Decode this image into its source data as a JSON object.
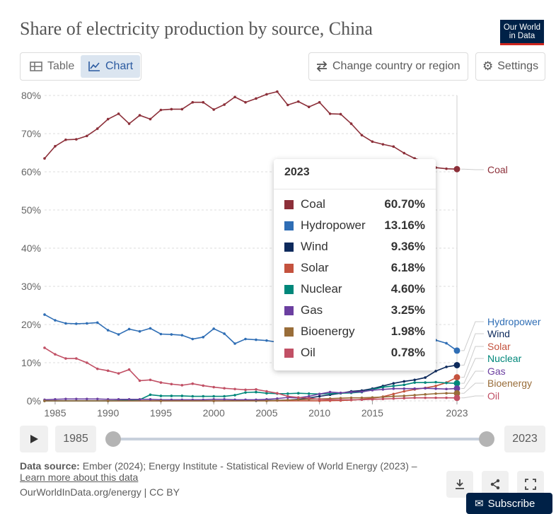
{
  "header": {
    "title": "Share of electricity production by source, China",
    "logo_line1": "Our World",
    "logo_line2": "in Data"
  },
  "toolbar": {
    "table_label": "Table",
    "chart_label": "Chart",
    "change_region_label": "Change country or region",
    "settings_label": "Settings"
  },
  "tooltip": {
    "year": "2023",
    "rows": [
      {
        "name": "Coal",
        "value": "60.70%",
        "color": "#8c2f39"
      },
      {
        "name": "Hydropower",
        "value": "13.16%",
        "color": "#2f6eb5"
      },
      {
        "name": "Wind",
        "value": "9.36%",
        "color": "#0d2a5c"
      },
      {
        "name": "Solar",
        "value": "6.18%",
        "color": "#c4523e"
      },
      {
        "name": "Nuclear",
        "value": "4.60%",
        "color": "#00877a"
      },
      {
        "name": "Gas",
        "value": "3.25%",
        "color": "#6b3fa0"
      },
      {
        "name": "Bioenergy",
        "value": "1.98%",
        "color": "#996d39"
      },
      {
        "name": "Oil",
        "value": "0.78%",
        "color": "#c15065"
      }
    ]
  },
  "timeline": {
    "start_year": "1985",
    "end_year": "2023"
  },
  "footer": {
    "source_label": "Data source:",
    "source_text": "Ember (2024); Energy Institute - Statistical Review of World Energy (2023) –",
    "learn_more": "Learn more about this data",
    "credit": "OurWorldInData.org/energy | CC BY",
    "subscribe": "Subscribe"
  },
  "chart_data": {
    "type": "line",
    "title": "Share of electricity production by source, China",
    "ylim": [
      0,
      80
    ],
    "xlim": [
      1984,
      2023
    ],
    "y_ticks": [
      "0%",
      "10%",
      "20%",
      "30%",
      "40%",
      "50%",
      "60%",
      "70%",
      "80%"
    ],
    "x_ticks": [
      "1985",
      "1990",
      "1995",
      "2000",
      "2005",
      "2010",
      "2015",
      "2023"
    ],
    "legend": "end labels at right",
    "series": [
      {
        "name": "Coal",
        "color": "#8c2f39",
        "x": [
          1984,
          1985,
          1986,
          1987,
          1988,
          1989,
          1990,
          1991,
          1992,
          1993,
          1994,
          1995,
          1996,
          1997,
          1998,
          1999,
          2000,
          2001,
          2002,
          2003,
          2004,
          2005,
          2006,
          2007,
          2008,
          2009,
          2010,
          2011,
          2012,
          2013,
          2014,
          2015,
          2016,
          2017,
          2018,
          2019,
          2020,
          2021,
          2022,
          2023
        ],
        "values": [
          63.5,
          66.7,
          68.4,
          68.5,
          69.4,
          71.3,
          73.8,
          75.2,
          72.6,
          74.8,
          73.8,
          76.2,
          76.4,
          76.4,
          78.2,
          78.2,
          76.3,
          77.6,
          79.6,
          78.2,
          79.2,
          80.3,
          81.0,
          77.5,
          78.4,
          77.0,
          78.2,
          75.2,
          75.1,
          72.6,
          69.6,
          67.9,
          67.2,
          66.6,
          64.9,
          63.5,
          62.6,
          61.1,
          60.8,
          60.7
        ]
      },
      {
        "name": "Hydropower",
        "color": "#2f6eb5",
        "x": [
          1984,
          1985,
          1986,
          1987,
          1988,
          1989,
          1990,
          1991,
          1992,
          1993,
          1994,
          1995,
          1996,
          1997,
          1998,
          1999,
          2000,
          2001,
          2002,
          2003,
          2004,
          2005,
          2006,
          2007,
          2008,
          2009,
          2010,
          2011,
          2012,
          2013,
          2014,
          2015,
          2016,
          2017,
          2018,
          2019,
          2020,
          2021,
          2022,
          2023
        ],
        "values": [
          22.6,
          21.1,
          20.3,
          20.2,
          20.3,
          20.5,
          18.5,
          17.4,
          18.8,
          18.2,
          19.0,
          17.5,
          17.4,
          17.2,
          16.2,
          16.7,
          18.9,
          17.6,
          15.0,
          16.2,
          16.0,
          15.8,
          15.4,
          15.3,
          15.5,
          15.3,
          15.2,
          14.8,
          15.2,
          15.4,
          15.7,
          16.2,
          16.5,
          16.7,
          16.2,
          16.6,
          16.7,
          15.9,
          15.1,
          13.16
        ]
      },
      {
        "name": "Wind",
        "color": "#0d2a5c",
        "x": [
          1984,
          1990,
          1995,
          2000,
          2004,
          2005,
          2006,
          2007,
          2008,
          2009,
          2010,
          2011,
          2012,
          2013,
          2014,
          2015,
          2016,
          2017,
          2018,
          2019,
          2020,
          2021,
          2022,
          2023
        ],
        "values": [
          0,
          0,
          0,
          0,
          0.05,
          0.08,
          0.15,
          0.2,
          0.4,
          0.75,
          1.2,
          1.6,
          2.0,
          2.5,
          2.7,
          3.2,
          3.9,
          4.6,
          5.1,
          5.5,
          6.1,
          7.8,
          8.9,
          9.36
        ]
      },
      {
        "name": "Solar",
        "color": "#c4523e",
        "x": [
          1984,
          1990,
          1995,
          2000,
          2005,
          2010,
          2011,
          2012,
          2013,
          2014,
          2015,
          2016,
          2017,
          2018,
          2019,
          2020,
          2021,
          2022,
          2023
        ],
        "values": [
          0,
          0,
          0,
          0,
          0,
          0.02,
          0.05,
          0.1,
          0.2,
          0.4,
          0.7,
          1.1,
          1.8,
          2.5,
          3.0,
          3.4,
          3.9,
          4.8,
          6.18
        ]
      },
      {
        "name": "Nuclear",
        "color": "#00877a",
        "x": [
          1984,
          1990,
          1993,
          1994,
          1995,
          1996,
          1997,
          1998,
          1999,
          2000,
          2001,
          2002,
          2003,
          2004,
          2005,
          2006,
          2007,
          2008,
          2009,
          2010,
          2011,
          2012,
          2013,
          2014,
          2015,
          2016,
          2017,
          2018,
          2019,
          2020,
          2021,
          2022,
          2023
        ],
        "values": [
          0,
          0,
          0.3,
          1.6,
          1.3,
          1.3,
          1.3,
          1.2,
          1.2,
          1.2,
          1.2,
          1.5,
          2.2,
          2.3,
          2.0,
          1.9,
          1.9,
          2.0,
          1.9,
          1.8,
          1.9,
          2.0,
          2.1,
          2.3,
          3.0,
          3.6,
          3.9,
          4.2,
          4.8,
          4.8,
          4.9,
          4.7,
          4.6
        ]
      },
      {
        "name": "Gas",
        "color": "#6b3fa0",
        "x": [
          1984,
          1985,
          1986,
          1987,
          1988,
          1989,
          1990,
          1991,
          1992,
          1993,
          1994,
          1995,
          1996,
          1997,
          1998,
          1999,
          2000,
          2001,
          2002,
          2003,
          2004,
          2005,
          2006,
          2007,
          2008,
          2009,
          2010,
          2011,
          2012,
          2013,
          2014,
          2015,
          2016,
          2017,
          2018,
          2019,
          2020,
          2021,
          2022,
          2023
        ],
        "values": [
          0.3,
          0.4,
          0.5,
          0.5,
          0.5,
          0.5,
          0.4,
          0.4,
          0.4,
          0.4,
          0.4,
          0.3,
          0.3,
          0.3,
          0.3,
          0.3,
          0.4,
          0.4,
          0.3,
          0.3,
          0.3,
          0.4,
          0.6,
          0.9,
          0.8,
          1.2,
          1.8,
          2.3,
          2.1,
          2.3,
          2.4,
          2.8,
          3.0,
          3.2,
          3.2,
          3.2,
          3.3,
          3.2,
          3.1,
          3.25
        ]
      },
      {
        "name": "Bioenergy",
        "color": "#996d39",
        "x": [
          1984,
          1990,
          1995,
          2000,
          2005,
          2006,
          2007,
          2008,
          2009,
          2010,
          2011,
          2012,
          2013,
          2014,
          2015,
          2016,
          2017,
          2018,
          2019,
          2020,
          2021,
          2022,
          2023
        ],
        "values": [
          0,
          0,
          0,
          0,
          0,
          0.1,
          0.2,
          0.3,
          0.4,
          0.5,
          0.6,
          0.7,
          0.8,
          0.8,
          0.9,
          1.0,
          1.2,
          1.3,
          1.5,
          1.7,
          1.9,
          2.0,
          1.98
        ]
      },
      {
        "name": "Oil",
        "color": "#c15065",
        "x": [
          1984,
          1985,
          1986,
          1987,
          1988,
          1989,
          1990,
          1991,
          1992,
          1993,
          1994,
          1995,
          1996,
          1997,
          1998,
          1999,
          2000,
          2001,
          2002,
          2003,
          2004,
          2005,
          2006,
          2007,
          2008,
          2009,
          2010,
          2011,
          2012,
          2013,
          2014,
          2015,
          2016,
          2017,
          2018,
          2019,
          2020,
          2021,
          2022,
          2023
        ],
        "values": [
          13.9,
          12.2,
          11.1,
          11.1,
          10.0,
          8.4,
          7.9,
          7.2,
          8.2,
          5.3,
          5.5,
          4.8,
          4.4,
          4.1,
          4.5,
          4.0,
          3.6,
          3.3,
          3.1,
          2.9,
          3.0,
          2.5,
          2.0,
          1.2,
          0.9,
          0.7,
          0.4,
          0.3,
          0.3,
          0.3,
          0.3,
          0.4,
          0.5,
          0.6,
          0.7,
          0.8,
          0.8,
          0.8,
          0.8,
          0.78
        ]
      }
    ],
    "end_labels": [
      {
        "name": "Coal",
        "color": "#8c2f39"
      },
      {
        "name": "Hydropower",
        "color": "#2f6eb5"
      },
      {
        "name": "Wind",
        "color": "#0d2a5c"
      },
      {
        "name": "Solar",
        "color": "#c4523e"
      },
      {
        "name": "Nuclear",
        "color": "#00877a"
      },
      {
        "name": "Gas",
        "color": "#6b3fa0"
      },
      {
        "name": "Bioenergy",
        "color": "#996d39"
      },
      {
        "name": "Oil",
        "color": "#c15065"
      }
    ]
  }
}
